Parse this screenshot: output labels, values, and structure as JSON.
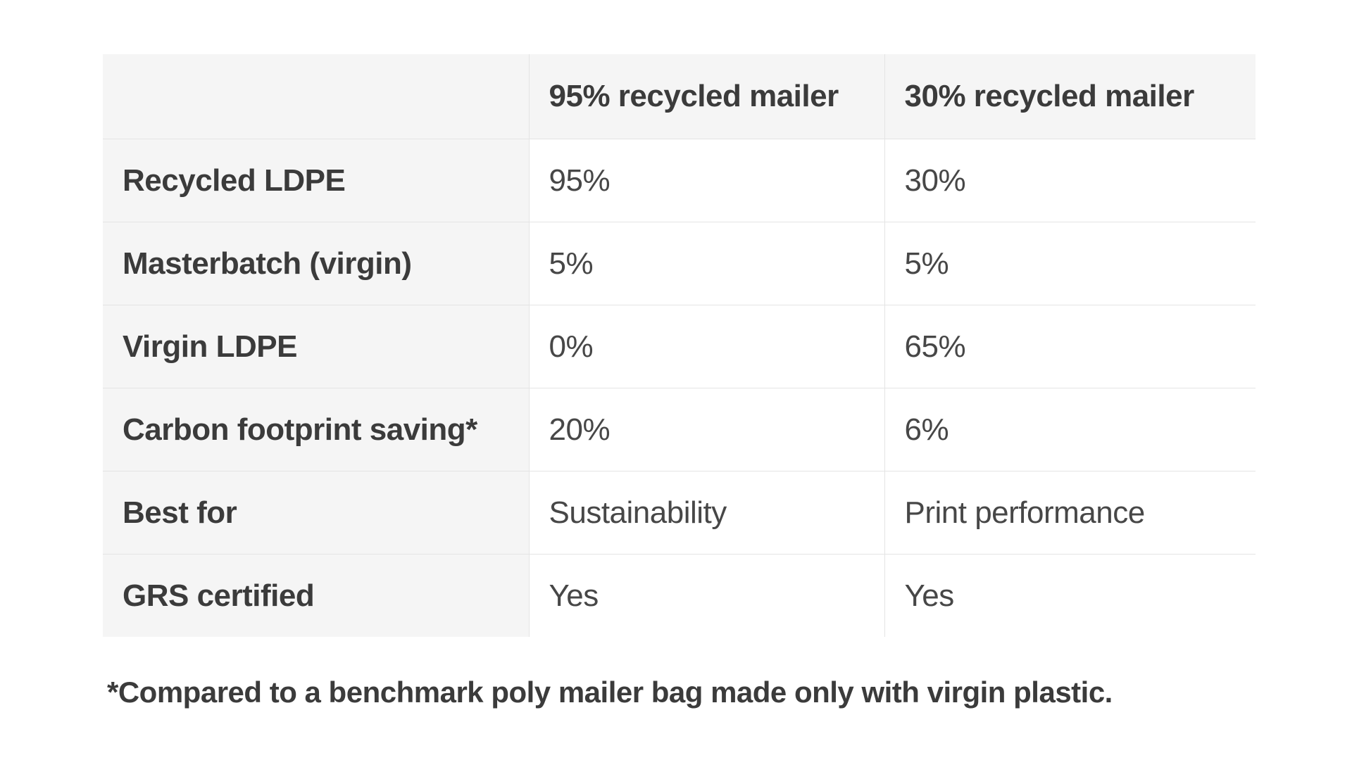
{
  "table": {
    "headers": [
      "",
      "95% recycled mailer",
      "30% recycled mailer"
    ],
    "rows": [
      {
        "label": "Recycled LDPE",
        "values": [
          "95%",
          "30%"
        ]
      },
      {
        "label": "Masterbatch (virgin)",
        "values": [
          "5%",
          "5%"
        ]
      },
      {
        "label": "Virgin LDPE",
        "values": [
          "0%",
          "65%"
        ]
      },
      {
        "label": "Carbon footprint saving*",
        "values": [
          "20%",
          "6%"
        ]
      },
      {
        "label": "Best for",
        "values": [
          "Sustainability",
          "Print performance"
        ]
      },
      {
        "label": "GRS certified",
        "values": [
          "Yes",
          "Yes"
        ]
      }
    ]
  },
  "footnote": "*Compared to a benchmark poly mailer bag made only with virgin plastic.",
  "colors": {
    "header_bg": "#f5f5f5",
    "border": "#e4e4e4",
    "text": "#3b3b3b"
  }
}
